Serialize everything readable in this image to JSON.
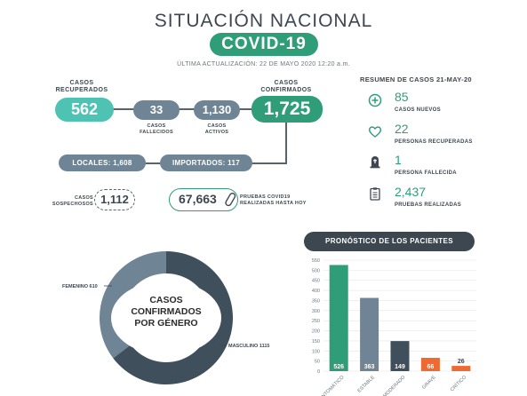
{
  "header": {
    "title": "SITUACIÓN NACIONAL",
    "badge": "COVID-19",
    "updated": "ÚLTIMA ACTUALIZACIÓN: 22 DE MAYO 2020 12:20 a.m."
  },
  "stats": {
    "recuperados": {
      "label_line1": "CASOS",
      "label_line2": "RECUPERADOS",
      "value": "562"
    },
    "fallecidos": {
      "label_line1": "CASOS",
      "label_line2": "FALLECIDOS",
      "value": "33"
    },
    "activos": {
      "label_line1": "CASOS",
      "label_line2": "ACTIVOS",
      "value": "1,130"
    },
    "confirmados": {
      "label_line1": "CASOS",
      "label_line2": "CONFIRMADOS",
      "value": "1,725"
    },
    "locales": "LOCALES: 1,608",
    "importados": "IMPORTADOS: 117",
    "sospechosos": {
      "label_line1": "CASOS",
      "label_line2": "SOSPECHOSOS",
      "value": "1,112"
    },
    "pruebas": {
      "value": "67,663",
      "label_line1": "PRUEBAS COVID19",
      "label_line2": "REALIZADAS HASTA HOY"
    }
  },
  "resumen": {
    "title": "RESUMEN DE CASOS 21-MAY-20",
    "items": [
      {
        "icon": "plus-circle-icon",
        "value": "85",
        "label": "CASOS NUEVOS"
      },
      {
        "icon": "heart-icon",
        "value": "22",
        "label": "PERSONAS RECUPERADAS"
      },
      {
        "icon": "tombstone-icon",
        "value": "1",
        "label": "PERSONA FALLECIDA"
      },
      {
        "icon": "clipboard-icon",
        "value": "2,437",
        "label": "PRUEBAS REALIZADAS"
      }
    ]
  },
  "chart_data": [
    {
      "type": "pie",
      "title": "CASOS CONFIRMADOS POR GÉNERO",
      "slices": [
        {
          "name": "FEMENINO",
          "value": 610,
          "label": "FEMENINO 610",
          "color": "#6f8495"
        },
        {
          "name": "MASCULINO",
          "value": 1115,
          "label": "MASCULINO 1115",
          "color": "#3f4f5b"
        }
      ]
    },
    {
      "type": "bar",
      "title": "PRONÓSTICO DE LOS PACIENTES",
      "categories": [
        "ASINTOMÁTICO",
        "ESTABLE",
        "MODERADO",
        "GRAVE",
        "CRÍTICO"
      ],
      "category_labels": [
        "ASINTOMÁTICO",
        "ESTABLE",
        "MODERADO",
        "GRAVE",
        "CRÍTICO"
      ],
      "values": [
        526,
        363,
        149,
        66,
        26
      ],
      "value_labels": [
        "526",
        "363",
        "149",
        "66",
        "26"
      ],
      "colors": [
        "#2f9e78",
        "#6f8495",
        "#3f4f5b",
        "#ef6a32",
        "#ef6a32"
      ],
      "ylim": [
        0,
        550
      ],
      "yticks": [
        "0",
        "50",
        "100",
        "150",
        "200",
        "250",
        "300",
        "350",
        "400",
        "450",
        "500",
        "550"
      ],
      "grid": true
    }
  ],
  "colors": {
    "green": "#2f9e78",
    "slate": "#6f8495",
    "dark": "#3f4f5b",
    "orange": "#ef6a32",
    "text": "#3d4750"
  }
}
